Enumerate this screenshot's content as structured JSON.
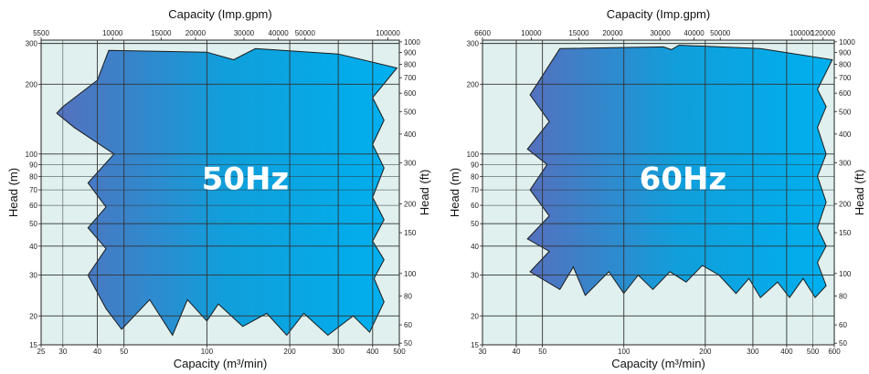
{
  "chart_data": [
    {
      "type": "area",
      "title": "",
      "label": "50Hz",
      "xlabel": "Capacity (m³/min)",
      "ylabel": "Head (m)",
      "x2label": "Capacity (Imp.gpm)",
      "y2label": "Head (ft)",
      "xscale": "log",
      "yscale": "log",
      "xlim": [
        25,
        500
      ],
      "ylim": [
        15,
        310
      ],
      "x2lim": [
        5500,
        110000
      ],
      "y2lim": [
        49.2,
        1017
      ],
      "xticks": [
        "25",
        "30",
        "40",
        "50",
        "100",
        "200",
        "300",
        "400",
        "500"
      ],
      "yticks": [
        "15",
        "20",
        "30",
        "40",
        "50",
        "60",
        "70",
        "80",
        "90",
        "100",
        "200",
        "300"
      ],
      "x2ticks": [
        "5500",
        "10000",
        "15000",
        "20000",
        "30000",
        "40000",
        "50000",
        "100000"
      ],
      "y2ticks": [
        "50",
        "60",
        "80",
        "100",
        "150",
        "200",
        "300",
        "400",
        "500",
        "600",
        "700",
        "800",
        "900",
        "1000"
      ],
      "grid": true,
      "gradient": [
        "#5570bd",
        "#109fdb",
        "#00b0ef"
      ],
      "envelope": [
        [
          44,
          280
        ],
        [
          100,
          275
        ],
        [
          125,
          255
        ],
        [
          150,
          285
        ],
        [
          300,
          270
        ],
        [
          490,
          235
        ],
        [
          400,
          175
        ],
        [
          440,
          140
        ],
        [
          400,
          110
        ],
        [
          440,
          87
        ],
        [
          400,
          65
        ],
        [
          440,
          52
        ],
        [
          400,
          42
        ],
        [
          440,
          35
        ],
        [
          405,
          29
        ],
        [
          440,
          23
        ],
        [
          390,
          17
        ],
        [
          340,
          20
        ],
        [
          275,
          16.5
        ],
        [
          225,
          20.5
        ],
        [
          195,
          16.5
        ],
        [
          165,
          20.5
        ],
        [
          135,
          18
        ],
        [
          110,
          22.5
        ],
        [
          100,
          19
        ],
        [
          85,
          23.5
        ],
        [
          75,
          16.5
        ],
        [
          62,
          23.5
        ],
        [
          49,
          17.5
        ],
        [
          43,
          21.5
        ],
        [
          37,
          30
        ],
        [
          43,
          39
        ],
        [
          37,
          48
        ],
        [
          43,
          59
        ],
        [
          37,
          75
        ],
        [
          46,
          100
        ],
        [
          33,
          130
        ],
        [
          28.5,
          150
        ],
        [
          30,
          160
        ],
        [
          40,
          208
        ]
      ]
    },
    {
      "type": "area",
      "title": "",
      "label": "60Hz",
      "xlabel": "Capacity (m³/min)",
      "ylabel": "Head (m)",
      "x2label": "Capacity (Imp.gpm)",
      "y2label": "Head (ft)",
      "xscale": "log",
      "yscale": "log",
      "xlim": [
        30,
        600
      ],
      "ylim": [
        15,
        310
      ],
      "x2lim": [
        6600,
        132000
      ],
      "y2lim": [
        49.2,
        1017
      ],
      "xticks": [
        "30",
        "40",
        "50",
        "100",
        "200",
        "300",
        "400",
        "500",
        "600"
      ],
      "yticks": [
        "15",
        "20",
        "30",
        "40",
        "50",
        "60",
        "70",
        "80",
        "90",
        "100",
        "200",
        "300"
      ],
      "x2ticks": [
        "6600",
        "10000",
        "15000",
        "20000",
        "30000",
        "40000",
        "50000",
        "100000",
        "120000"
      ],
      "y2ticks": [
        "50",
        "60",
        "80",
        "100",
        "150",
        "200",
        "300",
        "400",
        "500",
        "600",
        "700",
        "800",
        "900",
        "1000"
      ],
      "grid": true,
      "gradient": [
        "#5570bd",
        "#109fdb",
        "#00b0ef"
      ],
      "envelope": [
        [
          58,
          285
        ],
        [
          140,
          290
        ],
        [
          150,
          282
        ],
        [
          160,
          295
        ],
        [
          320,
          285
        ],
        [
          590,
          255
        ],
        [
          520,
          190
        ],
        [
          560,
          160
        ],
        [
          520,
          130
        ],
        [
          560,
          100
        ],
        [
          520,
          80
        ],
        [
          560,
          62
        ],
        [
          520,
          48
        ],
        [
          560,
          40
        ],
        [
          520,
          34
        ],
        [
          560,
          27
        ],
        [
          510,
          24
        ],
        [
          460,
          29
        ],
        [
          410,
          24
        ],
        [
          370,
          28
        ],
        [
          320,
          24
        ],
        [
          290,
          29
        ],
        [
          260,
          25
        ],
        [
          225,
          30
        ],
        [
          195,
          33
        ],
        [
          170,
          28
        ],
        [
          148,
          31
        ],
        [
          128,
          26
        ],
        [
          113,
          30
        ],
        [
          100,
          25
        ],
        [
          88,
          31
        ],
        [
          72,
          24.5
        ],
        [
          65,
          32.5
        ],
        [
          58,
          26
        ],
        [
          45,
          31
        ],
        [
          53,
          38
        ],
        [
          44,
          43
        ],
        [
          53,
          54
        ],
        [
          45,
          70
        ],
        [
          52,
          90
        ],
        [
          44,
          105
        ],
        [
          53,
          138
        ],
        [
          45,
          180
        ]
      ]
    }
  ]
}
